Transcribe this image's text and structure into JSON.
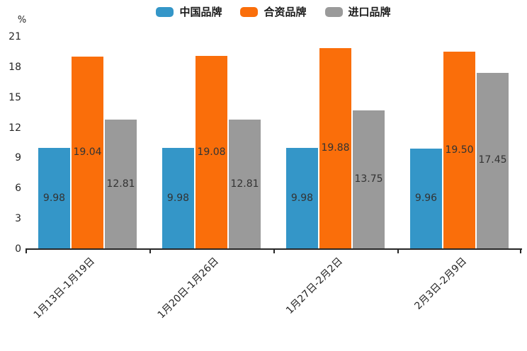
{
  "colors": {
    "china_brand": "#3496C8",
    "joint_venture_brand": "#FA6E0A",
    "import_brand": "#9A9A9A",
    "axis": "#262626",
    "value_label": "#333333"
  },
  "chart_data": {
    "type": "bar",
    "title": "",
    "ylabel": "%",
    "xlabel": "",
    "ylim": [
      0,
      21
    ],
    "yticks": [
      0,
      3,
      6,
      9,
      12,
      15,
      18,
      21
    ],
    "grid": false,
    "legend_position": "top-center",
    "data_labels": true,
    "categories": [
      "1月13日-1月19日",
      "1月20日-1月26日",
      "1月27日-2月2日",
      "2月3日-2月9日"
    ],
    "series": [
      {
        "name": "中国品牌",
        "color": "#3496C8",
        "values": [
          9.98,
          9.98,
          9.98,
          9.96
        ]
      },
      {
        "name": "合资品牌",
        "color": "#FA6E0A",
        "values": [
          19.04,
          19.08,
          19.88,
          19.5
        ]
      },
      {
        "name": "进口品牌",
        "color": "#9A9A9A",
        "values": [
          12.81,
          12.81,
          13.75,
          17.45
        ]
      }
    ]
  }
}
